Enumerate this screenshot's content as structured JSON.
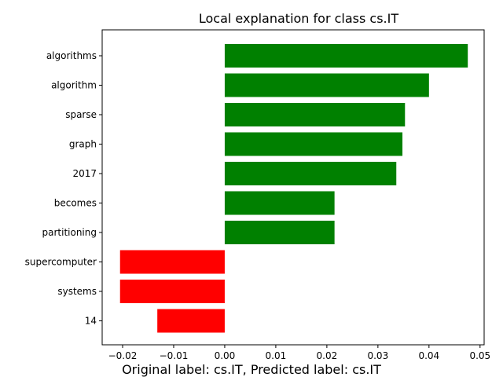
{
  "chart_data": {
    "type": "bar",
    "orientation": "horizontal",
    "title": "Local explanation for class cs.IT",
    "footer": "Original label: cs.IT, Predicted label: cs.IT",
    "xlabel": "",
    "ylabel": "",
    "categories": [
      "algorithms",
      "algorithm",
      "sparse",
      "graph",
      "2017",
      "becomes",
      "partitioning",
      "supercomputer",
      "systems",
      "14"
    ],
    "values": [
      0.0476,
      0.04,
      0.0353,
      0.0348,
      0.0336,
      0.0215,
      0.0215,
      -0.0205,
      -0.0205,
      -0.0132
    ],
    "xlim": [
      -0.024,
      0.0508
    ],
    "xticks": [
      -0.02,
      -0.01,
      0.0,
      0.01,
      0.02,
      0.03,
      0.04,
      0.05
    ],
    "xtick_labels": [
      "−0.02",
      "−0.01",
      "0.00",
      "0.01",
      "0.02",
      "0.03",
      "0.04",
      "0.05"
    ],
    "grid": false,
    "colors": {
      "positive": "#008000",
      "negative": "#ff0000"
    }
  }
}
